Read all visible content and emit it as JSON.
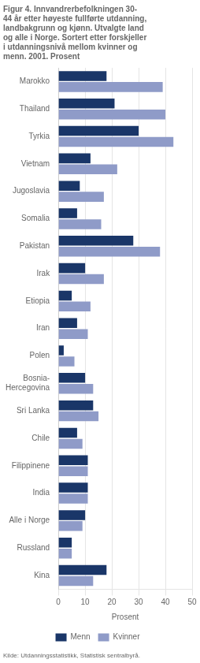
{
  "chart_data": {
    "type": "bar",
    "orientation": "horizontal",
    "title": [
      "Figur 4. Innvandrerbefolkningen 30-",
      "44 år etter høyeste fullførte utdanning,",
      "landbakgrunn og kjønn. Utvalgte land",
      "og alle i Norge. Sortert etter forskjeller",
      "i utdanningsnivå mellom kvinner og",
      "menn. 2001. Prosent"
    ],
    "source": "Kilde: Utdanningsstatistikk, Statistisk sentralbyrå.",
    "x_label": "Prosent",
    "categories": [
      "Marokko",
      "Thailand",
      "Tyrkia",
      "Vietnam",
      "Jugoslavia",
      "Somalia",
      "Pakistan",
      "Irak",
      "Etiopia",
      "Iran",
      "Polen",
      "Bosnia-\nHercegovina",
      "Sri Lanka",
      "Chile",
      "Filippinene",
      "India",
      "Alle i Norge",
      "Russland",
      "Kina"
    ],
    "series": [
      {
        "name": "Menn",
        "color": "#1a3668",
        "values": [
          18,
          21,
          30,
          12,
          8,
          7,
          28,
          10,
          5,
          7,
          2,
          10,
          13,
          7,
          11,
          11,
          10,
          5,
          18
        ]
      },
      {
        "name": "Kvinner",
        "color": "#8f9bc8",
        "values": [
          39,
          40,
          43,
          22,
          17,
          16,
          38,
          17,
          12,
          11,
          6,
          13,
          15,
          9,
          11,
          11,
          9,
          5,
          13
        ]
      }
    ],
    "xlim": [
      0,
      50
    ],
    "xticks": [
      0,
      10,
      20,
      30,
      40,
      50
    ],
    "grid": true,
    "legend": "bottom"
  }
}
